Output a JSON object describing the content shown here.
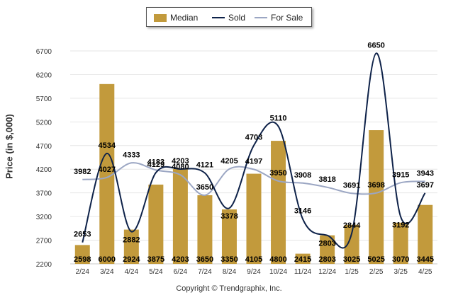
{
  "legend": {
    "median_label": "Median",
    "sold_label": "Sold",
    "forsale_label": "For Sale"
  },
  "colors": {
    "median": "#c29a3c",
    "sold": "#0e2249",
    "forsale": "#9ba6c3",
    "grid": "#e6e6e6"
  },
  "copyright": "Copyright © Trendgraphix, Inc.",
  "chart_data": {
    "type": "bar",
    "ylabel": "Price (in $,000)",
    "xlabel": "",
    "ylim": [
      2200,
      6700
    ],
    "yticks": [
      2200,
      2700,
      3200,
      3700,
      4200,
      4700,
      5200,
      5700,
      6200,
      6700
    ],
    "grid": true,
    "legend_position": "top-center",
    "categories": [
      "2/24",
      "3/24",
      "4/24",
      "5/24",
      "6/24",
      "7/24",
      "8/24",
      "9/24",
      "10/24",
      "11/24",
      "12/24",
      "1/25",
      "2/25",
      "3/25",
      "4/25"
    ],
    "series": [
      {
        "name": "Median",
        "kind": "bar",
        "values": [
          2598,
          6000,
          2924,
          3875,
          4203,
          3650,
          3350,
          4105,
          4800,
          2415,
          2803,
          3025,
          5025,
          3070,
          3445
        ]
      },
      {
        "name": "Sold",
        "kind": "line",
        "values": [
          2653,
          4534,
          2882,
          4129,
          4203,
          4121,
          3378,
          4703,
          5110,
          3146,
          2803,
          2844,
          6650,
          3192,
          3697
        ]
      },
      {
        "name": "For Sale",
        "kind": "line",
        "values": [
          3982,
          4027,
          4333,
          4183,
          4080,
          3650,
          4205,
          4197,
          3950,
          3908,
          3818,
          3691,
          3698,
          3915,
          3943
        ]
      }
    ]
  }
}
